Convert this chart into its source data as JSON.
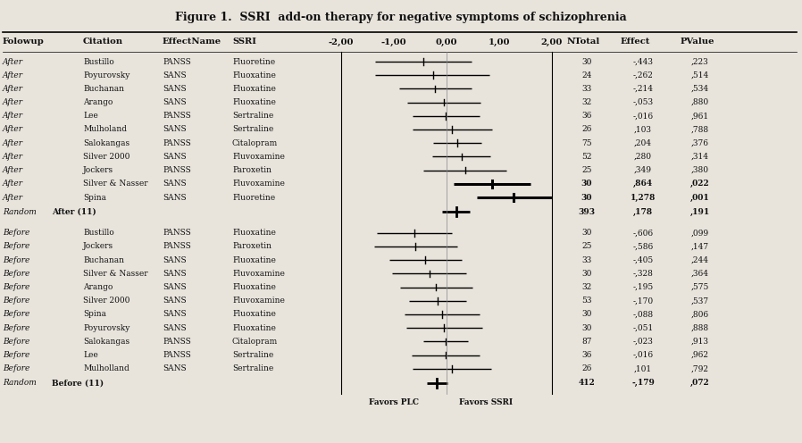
{
  "title": "Figure 1.  SSRI  add-on therapy for negative symptoms of schizophrenia",
  "after_rows": [
    {
      "followup": "After",
      "citation": "Bustillo",
      "effect_name": "PANSS",
      "ssri": "Fluoretine",
      "n": "30",
      "effect_str": "-,443",
      "pvalue_str": ",223",
      "effect": -0.443,
      "ci_low": -1.35,
      "ci_high": 0.47,
      "bold": false
    },
    {
      "followup": "After",
      "citation": "Poyurovsky",
      "effect_name": "SANS",
      "ssri": "Fluoxatine",
      "n": "24",
      "effect_str": "-,262",
      "pvalue_str": ",514",
      "effect": -0.262,
      "ci_low": -1.35,
      "ci_high": 0.82,
      "bold": false
    },
    {
      "followup": "After",
      "citation": "Buchanan",
      "effect_name": "SANS",
      "ssri": "Fluoxatine",
      "n": "33",
      "effect_str": "-,214",
      "pvalue_str": ",534",
      "effect": -0.214,
      "ci_low": -0.9,
      "ci_high": 0.47,
      "bold": false
    },
    {
      "followup": "After",
      "citation": "Arango",
      "effect_name": "SANS",
      "ssri": "Fluoxatine",
      "n": "32",
      "effect_str": "-,053",
      "pvalue_str": ",880",
      "effect": -0.053,
      "ci_low": -0.75,
      "ci_high": 0.64,
      "bold": false
    },
    {
      "followup": "After",
      "citation": "Lee",
      "effect_name": "PANSS",
      "ssri": "Sertraline",
      "n": "36",
      "effect_str": "-,016",
      "pvalue_str": ",961",
      "effect": -0.016,
      "ci_low": -0.65,
      "ci_high": 0.62,
      "bold": false
    },
    {
      "followup": "After",
      "citation": "Mulholand",
      "effect_name": "SANS",
      "ssri": "Sertraline",
      "n": "26",
      "effect_str": ",103",
      "pvalue_str": ",788",
      "effect": 0.103,
      "ci_low": -0.65,
      "ci_high": 0.86,
      "bold": false
    },
    {
      "followup": "After",
      "citation": "Salokangas",
      "effect_name": "PANSS",
      "ssri": "Citalopram",
      "n": "75",
      "effect_str": ",204",
      "pvalue_str": ",376",
      "effect": 0.204,
      "ci_low": -0.25,
      "ci_high": 0.66,
      "bold": false
    },
    {
      "followup": "After",
      "citation": "Silver 2000",
      "effect_name": "SANS",
      "ssri": "Fluvoxamine",
      "n": "52",
      "effect_str": ",280",
      "pvalue_str": ",314",
      "effect": 0.28,
      "ci_low": -0.27,
      "ci_high": 0.83,
      "bold": false
    },
    {
      "followup": "After",
      "citation": "Jockers",
      "effect_name": "PANSS",
      "ssri": "Paroxetin",
      "n": "25",
      "effect_str": ",349",
      "pvalue_str": ",380",
      "effect": 0.349,
      "ci_low": -0.44,
      "ci_high": 1.14,
      "bold": false
    },
    {
      "followup": "After",
      "citation": "Silver & Nasser",
      "effect_name": "SANS",
      "ssri": "Fluvoxamine",
      "n": "30",
      "effect_str": ",864",
      "pvalue_str": ",022",
      "effect": 0.864,
      "ci_low": 0.13,
      "ci_high": 1.6,
      "bold": true
    },
    {
      "followup": "After",
      "citation": "Spina",
      "effect_name": "SANS",
      "ssri": "Fluoretine",
      "n": "30",
      "effect_str": "1,278",
      "pvalue_str": ",001",
      "effect": 1.278,
      "ci_low": 0.57,
      "ci_high": 2.0,
      "bold": true
    }
  ],
  "after_summary": {
    "n": "393",
    "effect_str": ",178",
    "pvalue_str": ",191",
    "effect": 0.178,
    "ci_low": -0.09,
    "ci_high": 0.44,
    "label": "After (11)"
  },
  "before_rows": [
    {
      "followup": "Before",
      "citation": "Bustillo",
      "effect_name": "PANSS",
      "ssri": "Fluoxatine",
      "n": "30",
      "effect_str": "-,606",
      "pvalue_str": ",099",
      "effect": -0.606,
      "ci_low": -1.32,
      "ci_high": 0.11,
      "bold": false
    },
    {
      "followup": "Before",
      "citation": "Jockers",
      "effect_name": "PANSS",
      "ssri": "Paroxetin",
      "n": "25",
      "effect_str": "-,586",
      "pvalue_str": ",147",
      "effect": -0.586,
      "ci_low": -1.38,
      "ci_high": 0.21,
      "bold": false
    },
    {
      "followup": "Before",
      "citation": "Buchanan",
      "effect_name": "SANS",
      "ssri": "Fluoxatine",
      "n": "33",
      "effect_str": "-,405",
      "pvalue_str": ",244",
      "effect": -0.405,
      "ci_low": -1.09,
      "ci_high": 0.28,
      "bold": false
    },
    {
      "followup": "Before",
      "citation": "Silver & Nasser",
      "effect_name": "SANS",
      "ssri": "Fluvoxamine",
      "n": "30",
      "effect_str": "-,328",
      "pvalue_str": ",364",
      "effect": -0.328,
      "ci_low": -1.04,
      "ci_high": 0.38,
      "bold": false
    },
    {
      "followup": "Before",
      "citation": "Arango",
      "effect_name": "SANS",
      "ssri": "Fluoxatine",
      "n": "32",
      "effect_str": "-,195",
      "pvalue_str": ",575",
      "effect": -0.195,
      "ci_low": -0.88,
      "ci_high": 0.49,
      "bold": false
    },
    {
      "followup": "Before",
      "citation": "Silver 2000",
      "effect_name": "SANS",
      "ssri": "Fluvoxamine",
      "n": "53",
      "effect_str": "-,170",
      "pvalue_str": ",537",
      "effect": -0.17,
      "ci_low": -0.71,
      "ci_high": 0.37,
      "bold": false
    },
    {
      "followup": "Before",
      "citation": "Spina",
      "effect_name": "SANS",
      "ssri": "Fluoxatine",
      "n": "30",
      "effect_str": "-,088",
      "pvalue_str": ",806",
      "effect": -0.088,
      "ci_low": -0.8,
      "ci_high": 0.62,
      "bold": false
    },
    {
      "followup": "Before",
      "citation": "Poyurovsky",
      "effect_name": "SANS",
      "ssri": "Fluoxatine",
      "n": "30",
      "effect_str": "-,051",
      "pvalue_str": ",888",
      "effect": -0.051,
      "ci_low": -0.77,
      "ci_high": 0.67,
      "bold": false
    },
    {
      "followup": "Before",
      "citation": "Salokangas",
      "effect_name": "PANSS",
      "ssri": "Citalopram",
      "n": "87",
      "effect_str": "-,023",
      "pvalue_str": ",913",
      "effect": -0.023,
      "ci_low": -0.44,
      "ci_high": 0.4,
      "bold": false
    },
    {
      "followup": "Before",
      "citation": "Lee",
      "effect_name": "PANSS",
      "ssri": "Sertraline",
      "n": "36",
      "effect_str": "-,016",
      "pvalue_str": ",962",
      "effect": -0.016,
      "ci_low": -0.66,
      "ci_high": 0.63,
      "bold": false
    },
    {
      "followup": "Before",
      "citation": "Mulholland",
      "effect_name": "SANS",
      "ssri": "Sertraline",
      "n": "26",
      "effect_str": ",101",
      "pvalue_str": ",792",
      "effect": 0.101,
      "ci_low": -0.65,
      "ci_high": 0.85,
      "bold": false
    }
  ],
  "before_summary": {
    "n": "412",
    "effect_str": "-,179",
    "pvalue_str": ",072",
    "effect": -0.179,
    "ci_low": -0.37,
    "ci_high": 0.01,
    "label": "Before (11)"
  },
  "x_min": -2.0,
  "x_max": 2.0,
  "favors_plc_label": "Favors PLC",
  "favors_ssri_label": "Favors SSRI",
  "bg_color": "#e8e4dc",
  "text_color": "#111111"
}
